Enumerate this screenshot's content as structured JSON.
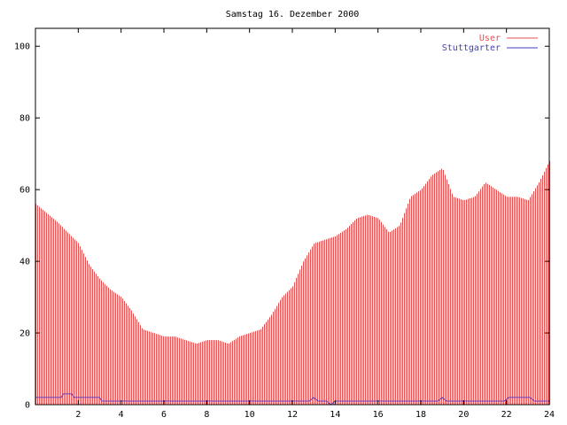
{
  "chart_data": {
    "type": "bar",
    "title": "Samstag 16. Dezember 2000",
    "xlabel": "",
    "ylabel": "",
    "xlim": [
      0,
      24
    ],
    "ylim": [
      0,
      105
    ],
    "x_ticks": [
      "2",
      "4",
      "6",
      "8",
      "10",
      "12",
      "14",
      "16",
      "18",
      "20",
      "22",
      "24"
    ],
    "y_ticks": [
      "0",
      "20",
      "40",
      "60",
      "80",
      "100"
    ],
    "legend_position": "top-right",
    "grid": false,
    "series": [
      {
        "name": "User",
        "type": "impulses",
        "color": "#e05050",
        "x": [
          0,
          1,
          2,
          2.5,
          3,
          3.5,
          4,
          4.5,
          5,
          5.5,
          6,
          6.5,
          7,
          7.5,
          8,
          8.5,
          9,
          9.5,
          10,
          10.5,
          11,
          11.5,
          12,
          12.5,
          13,
          13.5,
          14,
          14.5,
          15,
          15.5,
          16,
          16.5,
          17,
          17.5,
          18,
          18.5,
          19,
          19.5,
          20,
          20.5,
          21,
          21.5,
          22,
          22.5,
          23,
          23.5,
          24
        ],
        "y": [
          56,
          51,
          45,
          39,
          35,
          32,
          30,
          26,
          21,
          20,
          19,
          19,
          18,
          17,
          18,
          18,
          17,
          19,
          20,
          21,
          25,
          30,
          33,
          40,
          45,
          46,
          47,
          49,
          52,
          53,
          52,
          48,
          50,
          58,
          60,
          64,
          66,
          58,
          57,
          58,
          62,
          60,
          58,
          58,
          57,
          62,
          68
        ]
      },
      {
        "name": "Stuttgarter",
        "type": "line",
        "color": "#4040c0",
        "x": [
          0,
          1.2,
          1.3,
          1.7,
          1.8,
          3.0,
          3.1,
          12.8,
          13.0,
          13.2,
          13.6,
          13.8,
          14.0,
          16.9,
          18.8,
          19.0,
          19.2,
          21.9,
          22.1,
          23.1,
          23.3,
          23.5,
          24
        ],
        "y": [
          2,
          2,
          3,
          3,
          2,
          2,
          1,
          1,
          2,
          1,
          1,
          0,
          1,
          1,
          1,
          2,
          1,
          1,
          2,
          2,
          1,
          1,
          1
        ]
      }
    ]
  }
}
